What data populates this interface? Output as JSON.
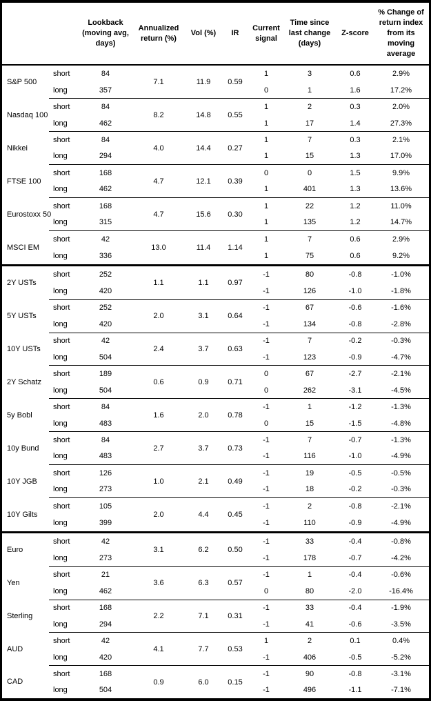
{
  "chart_data": {
    "type": "table",
    "columns": [
      "",
      "",
      "Lookback (moving avg, days)",
      "Annualized return (%)",
      "Vol (%)",
      "IR",
      "Current signal",
      "Time since last change (days)",
      "Z-score",
      "% Change of return index from its moving average"
    ],
    "sections": [
      {
        "groups": [
          {
            "asset": "S&P 500",
            "annualized_return": "7.1",
            "vol": "11.9",
            "ir": "0.59",
            "rows": [
              {
                "position": "short",
                "lookback": "84",
                "signal": "1",
                "time_since_change": "3",
                "z_score": "0.6",
                "pct_change": "2.9%"
              },
              {
                "position": "long",
                "lookback": "357",
                "signal": "0",
                "time_since_change": "1",
                "z_score": "1.6",
                "pct_change": "17.2%"
              }
            ]
          },
          {
            "asset": "Nasdaq 100",
            "annualized_return": "8.2",
            "vol": "14.8",
            "ir": "0.55",
            "rows": [
              {
                "position": "short",
                "lookback": "84",
                "signal": "1",
                "time_since_change": "2",
                "z_score": "0.3",
                "pct_change": "2.0%"
              },
              {
                "position": "long",
                "lookback": "462",
                "signal": "1",
                "time_since_change": "17",
                "z_score": "1.4",
                "pct_change": "27.3%"
              }
            ]
          },
          {
            "asset": "Nikkei",
            "annualized_return": "4.0",
            "vol": "14.4",
            "ir": "0.27",
            "rows": [
              {
                "position": "short",
                "lookback": "84",
                "signal": "1",
                "time_since_change": "7",
                "z_score": "0.3",
                "pct_change": "2.1%"
              },
              {
                "position": "long",
                "lookback": "294",
                "signal": "1",
                "time_since_change": "15",
                "z_score": "1.3",
                "pct_change": "17.0%"
              }
            ]
          },
          {
            "asset": "FTSE 100",
            "annualized_return": "4.7",
            "vol": "12.1",
            "ir": "0.39",
            "rows": [
              {
                "position": "short",
                "lookback": "168",
                "signal": "0",
                "time_since_change": "0",
                "z_score": "1.5",
                "pct_change": "9.9%"
              },
              {
                "position": "long",
                "lookback": "462",
                "signal": "1",
                "time_since_change": "401",
                "z_score": "1.3",
                "pct_change": "13.6%"
              }
            ]
          },
          {
            "asset": "Eurostoxx 50",
            "annualized_return": "4.7",
            "vol": "15.6",
            "ir": "0.30",
            "rows": [
              {
                "position": "short",
                "lookback": "168",
                "signal": "1",
                "time_since_change": "22",
                "z_score": "1.2",
                "pct_change": "11.0%"
              },
              {
                "position": "long",
                "lookback": "315",
                "signal": "1",
                "time_since_change": "135",
                "z_score": "1.2",
                "pct_change": "14.7%"
              }
            ]
          },
          {
            "asset": "MSCI EM",
            "annualized_return": "13.0",
            "vol": "11.4",
            "ir": "1.14",
            "rows": [
              {
                "position": "short",
                "lookback": "42",
                "signal": "1",
                "time_since_change": "7",
                "z_score": "0.6",
                "pct_change": "2.9%"
              },
              {
                "position": "long",
                "lookback": "336",
                "signal": "1",
                "time_since_change": "75",
                "z_score": "0.6",
                "pct_change": "9.2%"
              }
            ]
          }
        ]
      },
      {
        "groups": [
          {
            "asset": "2Y USTs",
            "annualized_return": "1.1",
            "vol": "1.1",
            "ir": "0.97",
            "rows": [
              {
                "position": "short",
                "lookback": "252",
                "signal": "-1",
                "time_since_change": "80",
                "z_score": "-0.8",
                "pct_change": "-1.0%"
              },
              {
                "position": "long",
                "lookback": "420",
                "signal": "-1",
                "time_since_change": "126",
                "z_score": "-1.0",
                "pct_change": "-1.8%"
              }
            ]
          },
          {
            "asset": "5Y USTs",
            "annualized_return": "2.0",
            "vol": "3.1",
            "ir": "0.64",
            "rows": [
              {
                "position": "short",
                "lookback": "252",
                "signal": "-1",
                "time_since_change": "67",
                "z_score": "-0.6",
                "pct_change": "-1.6%"
              },
              {
                "position": "long",
                "lookback": "420",
                "signal": "-1",
                "time_since_change": "134",
                "z_score": "-0.8",
                "pct_change": "-2.8%"
              }
            ]
          },
          {
            "asset": "10Y USTs",
            "annualized_return": "2.4",
            "vol": "3.7",
            "ir": "0.63",
            "rows": [
              {
                "position": "short",
                "lookback": "42",
                "signal": "-1",
                "time_since_change": "7",
                "z_score": "-0.2",
                "pct_change": "-0.3%"
              },
              {
                "position": "long",
                "lookback": "504",
                "signal": "-1",
                "time_since_change": "123",
                "z_score": "-0.9",
                "pct_change": "-4.7%"
              }
            ]
          },
          {
            "asset": "2Y Schatz",
            "annualized_return": "0.6",
            "vol": "0.9",
            "ir": "0.71",
            "rows": [
              {
                "position": "short",
                "lookback": "189",
                "signal": "0",
                "time_since_change": "67",
                "z_score": "-2.7",
                "pct_change": "-2.1%"
              },
              {
                "position": "long",
                "lookback": "504",
                "signal": "0",
                "time_since_change": "262",
                "z_score": "-3.1",
                "pct_change": "-4.5%"
              }
            ]
          },
          {
            "asset": "5y Bobl",
            "annualized_return": "1.6",
            "vol": "2.0",
            "ir": "0.78",
            "rows": [
              {
                "position": "short",
                "lookback": "84",
                "signal": "-1",
                "time_since_change": "1",
                "z_score": "-1.2",
                "pct_change": "-1.3%"
              },
              {
                "position": "long",
                "lookback": "483",
                "signal": "0",
                "time_since_change": "15",
                "z_score": "-1.5",
                "pct_change": "-4.8%"
              }
            ]
          },
          {
            "asset": "10y Bund",
            "annualized_return": "2.7",
            "vol": "3.7",
            "ir": "0.73",
            "rows": [
              {
                "position": "short",
                "lookback": "84",
                "signal": "-1",
                "time_since_change": "7",
                "z_score": "-0.7",
                "pct_change": "-1.3%"
              },
              {
                "position": "long",
                "lookback": "483",
                "signal": "-1",
                "time_since_change": "116",
                "z_score": "-1.0",
                "pct_change": "-4.9%"
              }
            ]
          },
          {
            "asset": "10Y JGB",
            "annualized_return": "1.0",
            "vol": "2.1",
            "ir": "0.49",
            "rows": [
              {
                "position": "short",
                "lookback": "126",
                "signal": "-1",
                "time_since_change": "19",
                "z_score": "-0.5",
                "pct_change": "-0.5%"
              },
              {
                "position": "long",
                "lookback": "273",
                "signal": "-1",
                "time_since_change": "18",
                "z_score": "-0.2",
                "pct_change": "-0.3%"
              }
            ]
          },
          {
            "asset": "10Y Gilts",
            "annualized_return": "2.0",
            "vol": "4.4",
            "ir": "0.45",
            "rows": [
              {
                "position": "short",
                "lookback": "105",
                "signal": "-1",
                "time_since_change": "2",
                "z_score": "-0.8",
                "pct_change": "-2.1%"
              },
              {
                "position": "long",
                "lookback": "399",
                "signal": "-1",
                "time_since_change": "110",
                "z_score": "-0.9",
                "pct_change": "-4.9%"
              }
            ]
          }
        ]
      },
      {
        "groups": [
          {
            "asset": "Euro",
            "annualized_return": "3.1",
            "vol": "6.2",
            "ir": "0.50",
            "rows": [
              {
                "position": "short",
                "lookback": "42",
                "signal": "-1",
                "time_since_change": "33",
                "z_score": "-0.4",
                "pct_change": "-0.8%"
              },
              {
                "position": "long",
                "lookback": "273",
                "signal": "-1",
                "time_since_change": "178",
                "z_score": "-0.7",
                "pct_change": "-4.2%"
              }
            ]
          },
          {
            "asset": "Yen",
            "annualized_return": "3.6",
            "vol": "6.3",
            "ir": "0.57",
            "rows": [
              {
                "position": "short",
                "lookback": "21",
                "signal": "-1",
                "time_since_change": "1",
                "z_score": "-0.4",
                "pct_change": "-0.6%"
              },
              {
                "position": "long",
                "lookback": "462",
                "signal": "0",
                "time_since_change": "80",
                "z_score": "-2.0",
                "pct_change": "-16.4%"
              }
            ]
          },
          {
            "asset": "Sterling",
            "annualized_return": "2.2",
            "vol": "7.1",
            "ir": "0.31",
            "rows": [
              {
                "position": "short",
                "lookback": "168",
                "signal": "-1",
                "time_since_change": "33",
                "z_score": "-0.4",
                "pct_change": "-1.9%"
              },
              {
                "position": "long",
                "lookback": "294",
                "signal": "-1",
                "time_since_change": "41",
                "z_score": "-0.6",
                "pct_change": "-3.5%"
              }
            ]
          },
          {
            "asset": "AUD",
            "annualized_return": "4.1",
            "vol": "7.7",
            "ir": "0.53",
            "rows": [
              {
                "position": "short",
                "lookback": "42",
                "signal": "1",
                "time_since_change": "2",
                "z_score": "0.1",
                "pct_change": "0.4%"
              },
              {
                "position": "long",
                "lookback": "420",
                "signal": "-1",
                "time_since_change": "406",
                "z_score": "-0.5",
                "pct_change": "-5.2%"
              }
            ]
          },
          {
            "asset": "CAD",
            "annualized_return": "0.9",
            "vol": "6.0",
            "ir": "0.15",
            "rows": [
              {
                "position": "short",
                "lookback": "168",
                "signal": "-1",
                "time_since_change": "90",
                "z_score": "-0.8",
                "pct_change": "-3.1%"
              },
              {
                "position": "long",
                "lookback": "504",
                "signal": "-1",
                "time_since_change": "496",
                "z_score": "-1.1",
                "pct_change": "-7.1%"
              }
            ]
          }
        ]
      }
    ],
    "colors": {
      "border": "#000000",
      "text": "#000000",
      "background": "#ffffff"
    }
  }
}
